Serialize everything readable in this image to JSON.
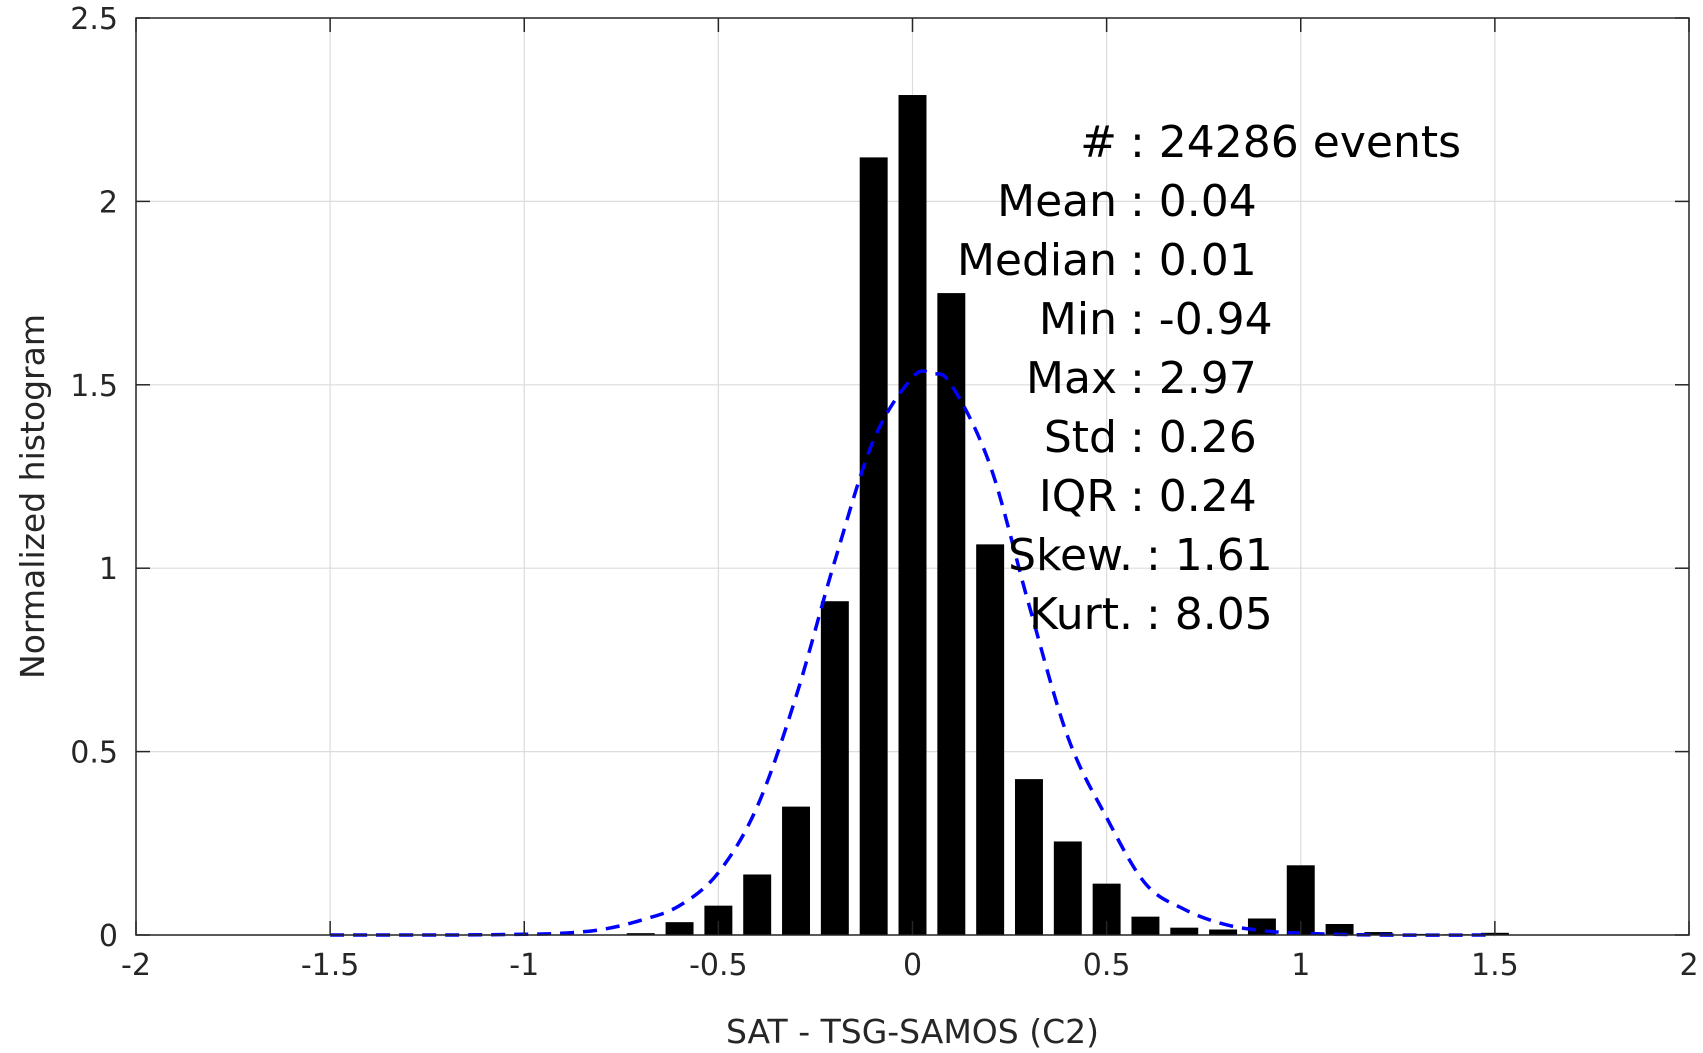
{
  "chart_data": {
    "type": "bar",
    "xlabel": "SAT - TSG-SAMOS (C2)",
    "ylabel": "Normalized histogram",
    "xlim": [
      -2,
      2
    ],
    "ylim": [
      0,
      2.5
    ],
    "xticks": [
      "-2",
      "-1.5",
      "-1",
      "-0.5",
      "0",
      "0.5",
      "1",
      "1.5",
      "2"
    ],
    "yticks": [
      "0",
      "0.5",
      "1",
      "1.5",
      "2",
      "2.5"
    ],
    "grid": true,
    "bar_color": "#000000",
    "fit_color": "#0000ff",
    "bin_width": 0.1,
    "bins": {
      "x": [
        -0.7,
        -0.6,
        -0.5,
        -0.4,
        -0.3,
        -0.2,
        -0.1,
        0.0,
        0.1,
        0.2,
        0.3,
        0.4,
        0.5,
        0.6,
        0.7,
        0.8,
        0.9,
        1.0,
        1.1,
        1.2,
        1.3,
        1.4,
        1.5
      ],
      "values": [
        0.005,
        0.035,
        0.08,
        0.165,
        0.35,
        0.91,
        2.12,
        2.29,
        1.75,
        1.065,
        0.425,
        0.255,
        0.14,
        0.05,
        0.02,
        0.015,
        0.045,
        0.19,
        0.03,
        0.008,
        0.003,
        0.002,
        0.006
      ]
    },
    "fit_curve": {
      "style": "dashed",
      "x": [
        -1.5,
        -1.2,
        -1.0,
        -0.9,
        -0.8,
        -0.7,
        -0.6,
        -0.5,
        -0.4,
        -0.3,
        -0.2,
        -0.1,
        0.0,
        0.05,
        0.1,
        0.2,
        0.3,
        0.4,
        0.5,
        0.6,
        0.7,
        0.8,
        0.9,
        1.0,
        1.2,
        1.5
      ],
      "values": [
        0.0,
        0.0,
        0.002,
        0.005,
        0.015,
        0.04,
        0.08,
        0.17,
        0.35,
        0.65,
        1.02,
        1.35,
        1.52,
        1.53,
        1.5,
        1.28,
        0.9,
        0.54,
        0.32,
        0.14,
        0.07,
        0.03,
        0.012,
        0.005,
        0.0,
        0.0
      ]
    }
  },
  "stats": [
    {
      "label": "#  ",
      "value": "24286 events"
    },
    {
      "label": "Mean ",
      "value": "0.04"
    },
    {
      "label": "Median ",
      "value": "0.01"
    },
    {
      "label": "Min ",
      "value": "-0.94"
    },
    {
      "label": "Max ",
      "value": "2.97"
    },
    {
      "label": "Std ",
      "value": "0.26"
    },
    {
      "label": "IQR ",
      "value": "0.24"
    },
    {
      "label": "Skew. ",
      "value": "1.61"
    },
    {
      "label": "Kurt. ",
      "value": "8.05"
    }
  ]
}
